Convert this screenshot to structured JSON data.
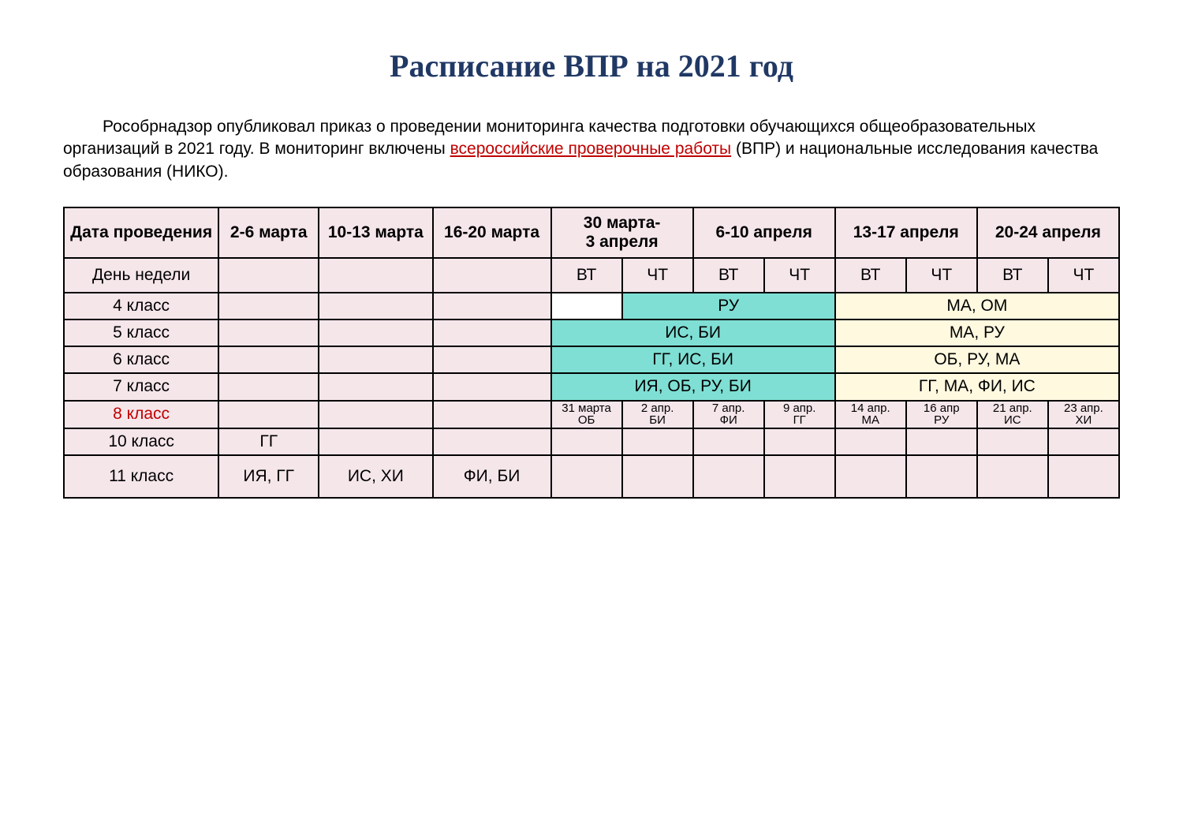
{
  "title": "Расписание ВПР на 2021 год",
  "intro": {
    "before_link": "Рособрнадзор опубликовал приказ о проведении мониторинга качества подготовки обучающихся общеобразовательных организаций в 2021 году. В мониторинг включены ",
    "link_text": "всероссийские проверочные работы",
    "after_link": " (ВПР) и национальные исследования качества образования (НИКО)."
  },
  "colors": {
    "title_color": "#203864",
    "link_color": "#c00000",
    "red_text": "#c00000",
    "bg_default": "#f5e6ea",
    "bg_cyan": "#7fdfd4",
    "bg_yellow": "#fff9e0",
    "bg_white": "#ffffff",
    "border": "#000000"
  },
  "fonts": {
    "title_family": "Georgia",
    "title_size_pt": 30,
    "body_size_pt": 16,
    "small_size_pt": 11
  },
  "headers": {
    "date_label": "Дата проведения",
    "day_label": "День недели",
    "cols": [
      "2-6 марта",
      "10-13 марта",
      "16-20 марта",
      "30 марта-\n3 апреля",
      "6-10 апреля",
      "13-17 апреля",
      "20-24 апреля"
    ]
  },
  "days": {
    "vt": "ВТ",
    "cht": "ЧТ"
  },
  "rows": {
    "grade4": {
      "label": "4 класс",
      "cyan": "РУ",
      "yellow": "МА, ОМ"
    },
    "grade5": {
      "label": "5 класс",
      "cyan": "ИС, БИ",
      "yellow": "МА, РУ"
    },
    "grade6": {
      "label": "6 класс",
      "cyan": "ГГ, ИС, БИ",
      "yellow": "ОБ, РУ, МА"
    },
    "grade7": {
      "label": "7 класс",
      "cyan": "ИЯ, ОБ, РУ, БИ",
      "yellow": "ГГ, МА, ФИ, ИС"
    },
    "grade8": {
      "label": "8 класс",
      "cells": [
        "31 марта\nОБ",
        "2 апр.\nБИ",
        "7 апр.\nФИ",
        "9 апр.\nГГ",
        "14 апр.\nМА",
        "16 апр\nРУ",
        "21 апр.\nИС",
        "23 апр.\nХИ"
      ]
    },
    "grade10": {
      "label": "10 класс",
      "c1": "ГГ"
    },
    "grade11": {
      "label": "11 класс",
      "c1": "ИЯ, ГГ",
      "c2": "ИС, ХИ",
      "c3": "ФИ, БИ"
    }
  }
}
